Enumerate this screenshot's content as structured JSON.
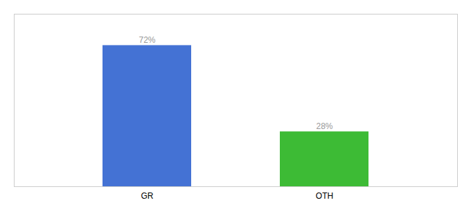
{
  "chart_data": {
    "type": "bar",
    "categories": [
      "GR",
      "OTH"
    ],
    "values": [
      72,
      28
    ],
    "colors": [
      "#4472d4",
      "#3dbb35"
    ],
    "data_labels": true,
    "value_labels": [
      "72%",
      "28%"
    ],
    "ylim": [
      0,
      88
    ],
    "tick_labels": "x"
  }
}
